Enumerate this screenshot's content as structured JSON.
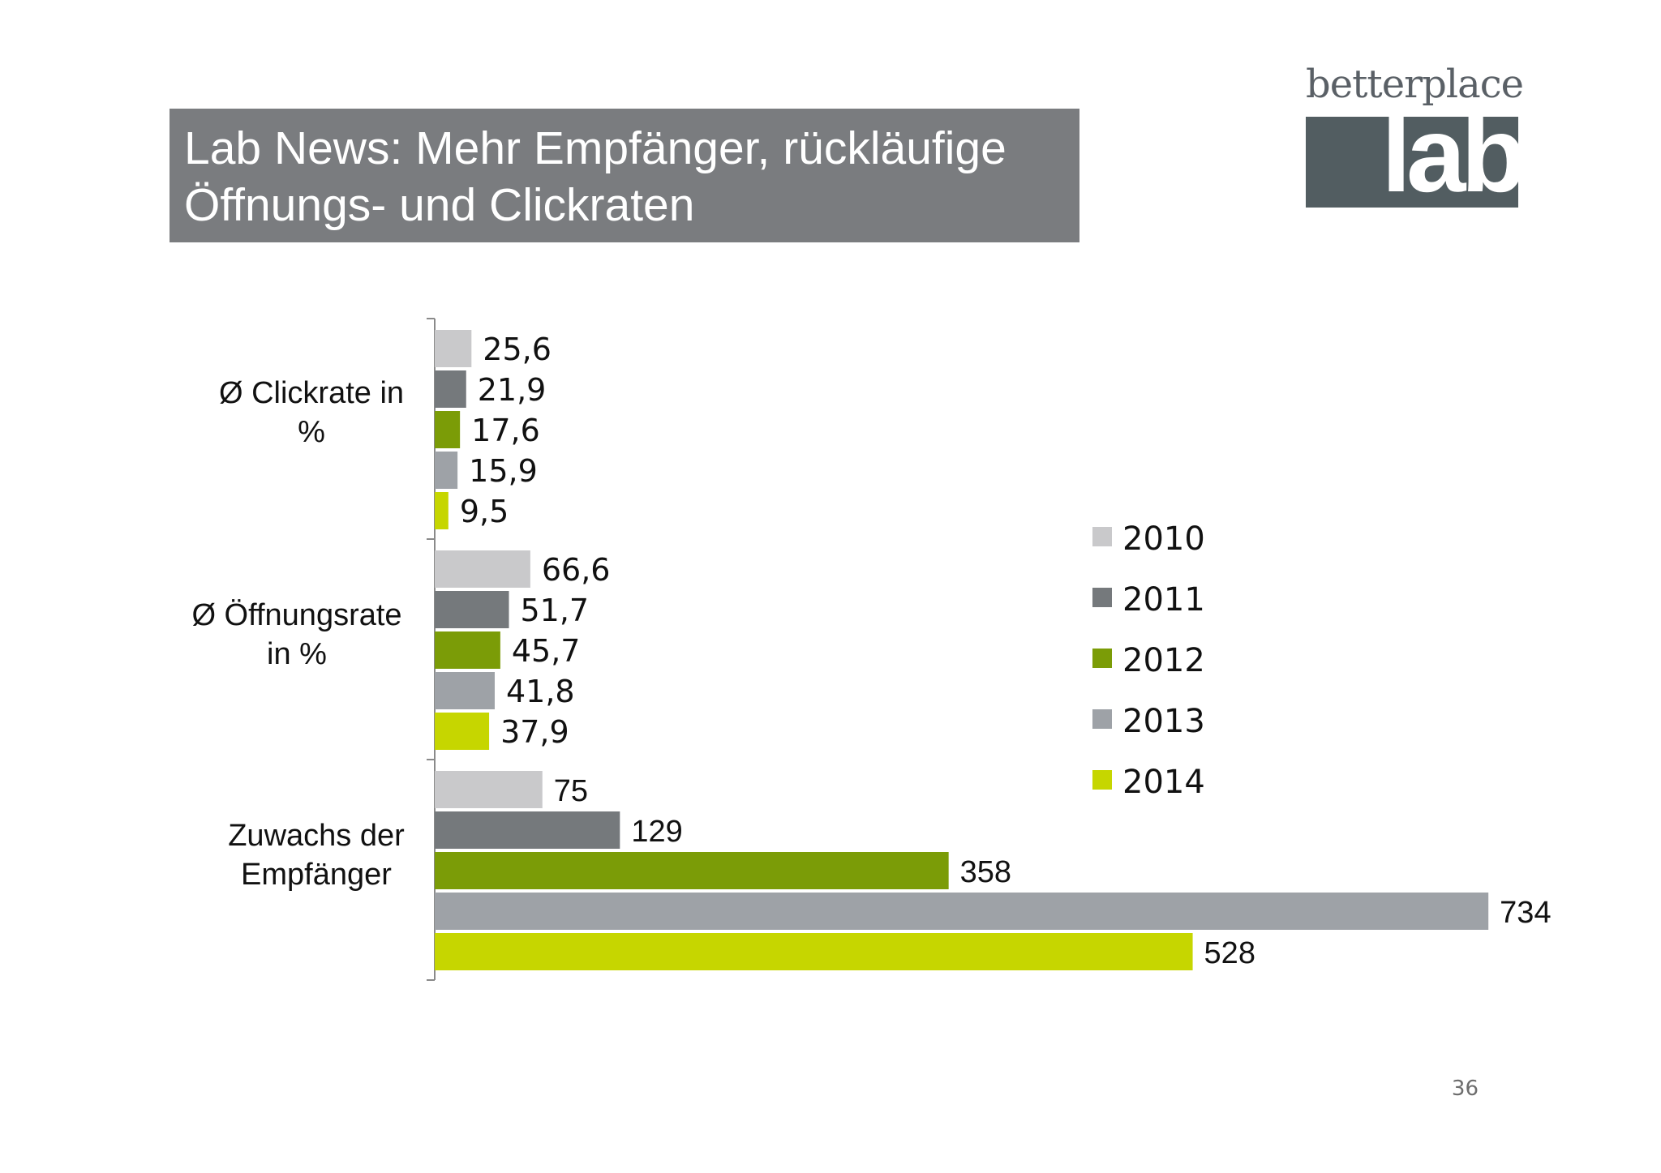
{
  "slide": {
    "title_line1": "Lab News: Mehr Empfänger, rückläufige",
    "title_line2": "Öffnungs- und Clickraten",
    "page_number": "36"
  },
  "logo": {
    "top_text": "betterplace",
    "word": "lab"
  },
  "chart_data": {
    "type": "bar",
    "orientation": "horizontal",
    "categories": [
      [
        "Ø Clickrate in",
        "%"
      ],
      [
        "Ø Öffnungsrate",
        "in %"
      ],
      [
        "Zuwachs der",
        "Empfänger"
      ]
    ],
    "series": [
      {
        "name": "2010",
        "color": "#c9c9cb",
        "values": [
          "25,6",
          "66,6",
          "75"
        ]
      },
      {
        "name": "2011",
        "color": "#75797c",
        "values": [
          "21,9",
          "51,7",
          "129"
        ]
      },
      {
        "name": "2012",
        "color": "#7b9c07",
        "values": [
          "17,6",
          "45,7",
          "358"
        ]
      },
      {
        "name": "2013",
        "color": "#9ea2a7",
        "values": [
          "15,9",
          "41,8",
          "734"
        ]
      },
      {
        "name": "2014",
        "color": "#c6d600",
        "values": [
          "9,5",
          "37,9",
          "528"
        ]
      }
    ],
    "xlim": [
      0,
      734
    ],
    "grid": false,
    "legend_position": "right"
  }
}
